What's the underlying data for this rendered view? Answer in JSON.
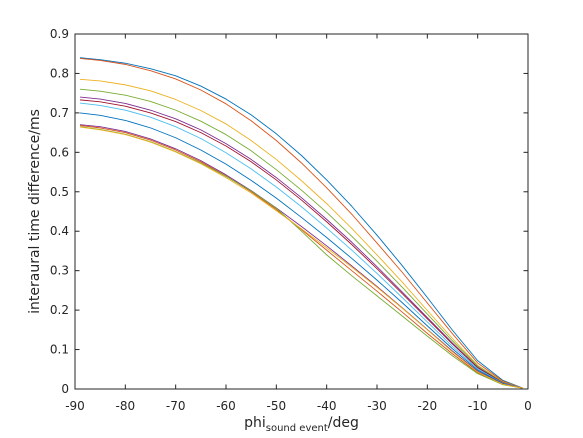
{
  "chart_data": {
    "type": "line",
    "xlabel": {
      "main": "phi",
      "sub": "sound event",
      "suffix": "/deg"
    },
    "ylabel": "interaural time difference/ms",
    "xlim": [
      -90,
      0
    ],
    "ylim": [
      0,
      0.9
    ],
    "xticks": [
      "-90",
      "-80",
      "-70",
      "-60",
      "-50",
      "-40",
      "-30",
      "-20",
      "-10",
      "0"
    ],
    "yticks": [
      "0",
      "0.1",
      "0.2",
      "0.3",
      "0.4",
      "0.5",
      "0.6",
      "0.7",
      "0.8",
      "0.9"
    ],
    "grid": false,
    "box": true,
    "x": [
      -89,
      -85,
      -80,
      -75,
      -70,
      -65,
      -60,
      -55,
      -50,
      -45,
      -40,
      -35,
      -30,
      -25,
      -20,
      -15,
      -10,
      -5,
      -1
    ],
    "series": [
      {
        "color": "#0072bd",
        "values": [
          0.84,
          0.835,
          0.826,
          0.812,
          0.794,
          0.768,
          0.735,
          0.695,
          0.647,
          0.592,
          0.53,
          0.463,
          0.39,
          0.313,
          0.232,
          0.149,
          0.072,
          0.022,
          0.002
        ]
      },
      {
        "color": "#d95319",
        "values": [
          0.838,
          0.833,
          0.823,
          0.807,
          0.786,
          0.758,
          0.723,
          0.68,
          0.63,
          0.573,
          0.51,
          0.443,
          0.37,
          0.296,
          0.218,
          0.14,
          0.066,
          0.02,
          0.002
        ]
      },
      {
        "color": "#edb120",
        "values": [
          0.785,
          0.781,
          0.771,
          0.756,
          0.734,
          0.706,
          0.672,
          0.63,
          0.582,
          0.528,
          0.47,
          0.407,
          0.34,
          0.271,
          0.199,
          0.128,
          0.06,
          0.018,
          0.002
        ]
      },
      {
        "color": "#77ac30",
        "values": [
          0.76,
          0.755,
          0.745,
          0.729,
          0.707,
          0.679,
          0.645,
          0.604,
          0.556,
          0.504,
          0.448,
          0.387,
          0.324,
          0.258,
          0.19,
          0.122,
          0.058,
          0.017,
          0.002
        ]
      },
      {
        "color": "#7e2f8e",
        "values": [
          0.74,
          0.735,
          0.724,
          0.707,
          0.685,
          0.657,
          0.622,
          0.582,
          0.536,
          0.485,
          0.43,
          0.372,
          0.31,
          0.246,
          0.181,
          0.116,
          0.055,
          0.016,
          0.002
        ]
      },
      {
        "color": "#a2142f",
        "values": [
          0.733,
          0.728,
          0.717,
          0.7,
          0.678,
          0.65,
          0.616,
          0.576,
          0.53,
          0.479,
          0.424,
          0.366,
          0.305,
          0.242,
          0.178,
          0.114,
          0.054,
          0.016,
          0.002
        ]
      },
      {
        "color": "#4dbeee",
        "values": [
          0.725,
          0.719,
          0.707,
          0.689,
          0.665,
          0.635,
          0.599,
          0.558,
          0.512,
          0.462,
          0.408,
          0.352,
          0.293,
          0.232,
          0.17,
          0.108,
          0.051,
          0.015,
          0.002
        ]
      },
      {
        "color": "#0072bd",
        "values": [
          0.7,
          0.694,
          0.681,
          0.662,
          0.637,
          0.606,
          0.57,
          0.529,
          0.484,
          0.435,
          0.384,
          0.331,
          0.276,
          0.219,
          0.16,
          0.102,
          0.048,
          0.014,
          0.002
        ]
      },
      {
        "color": "#7e2f8e",
        "values": [
          0.67,
          0.665,
          0.653,
          0.634,
          0.609,
          0.579,
          0.543,
          0.503,
          0.459,
          0.412,
          0.363,
          0.312,
          0.26,
          0.206,
          0.151,
          0.096,
          0.045,
          0.013,
          0.002
        ]
      },
      {
        "color": "#d95319",
        "values": [
          0.668,
          0.662,
          0.65,
          0.631,
          0.606,
          0.576,
          0.54,
          0.5,
          0.455,
          0.404,
          0.352,
          0.3,
          0.248,
          0.195,
          0.141,
          0.089,
          0.041,
          0.012,
          0.002
        ]
      },
      {
        "color": "#77ac30",
        "values": [
          0.665,
          0.658,
          0.646,
          0.627,
          0.602,
          0.573,
          0.539,
          0.502,
          0.458,
          0.4,
          0.34,
          0.287,
          0.236,
          0.185,
          0.134,
          0.084,
          0.039,
          0.011,
          0.002
        ]
      },
      {
        "color": "#edb120",
        "values": [
          0.664,
          0.657,
          0.645,
          0.626,
          0.601,
          0.571,
          0.536,
          0.497,
          0.452,
          0.406,
          0.358,
          0.309,
          0.258,
          0.205,
          0.15,
          0.094,
          0.043,
          0.012,
          0.002
        ]
      }
    ]
  }
}
